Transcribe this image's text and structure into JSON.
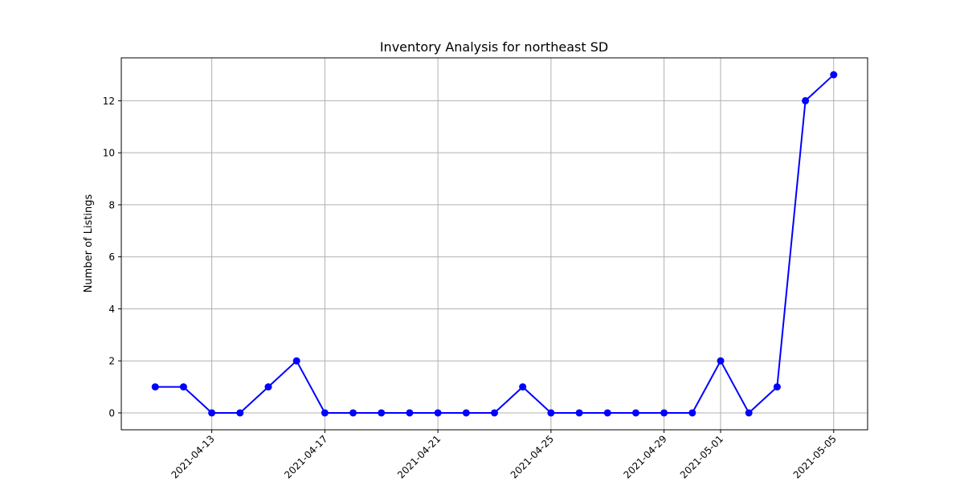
{
  "chart_data": {
    "type": "line",
    "title": "Inventory Analysis for northeast SD",
    "xlabel": "",
    "ylabel": "Number of Listings",
    "x": [
      "2021-04-11",
      "2021-04-12",
      "2021-04-13",
      "2021-04-14",
      "2021-04-15",
      "2021-04-16",
      "2021-04-17",
      "2021-04-18",
      "2021-04-19",
      "2021-04-20",
      "2021-04-21",
      "2021-04-22",
      "2021-04-23",
      "2021-04-24",
      "2021-04-25",
      "2021-04-26",
      "2021-04-27",
      "2021-04-28",
      "2021-04-29",
      "2021-04-30",
      "2021-05-01",
      "2021-05-02",
      "2021-05-03",
      "2021-05-04",
      "2021-05-05"
    ],
    "series": [
      {
        "name": "",
        "color": "#0000ff",
        "marker": "circle",
        "values": [
          1,
          1,
          0,
          0,
          1,
          2,
          0,
          0,
          0,
          0,
          0,
          0,
          0,
          1,
          0,
          0,
          0,
          0,
          0,
          0,
          2,
          0,
          1,
          12,
          13
        ]
      }
    ],
    "xticks": [
      "2021-04-13",
      "2021-04-17",
      "2021-04-21",
      "2021-04-25",
      "2021-04-29",
      "2021-05-01",
      "2021-05-05"
    ],
    "yticks": [
      "0",
      "2",
      "4",
      "6",
      "8",
      "10",
      "12"
    ],
    "xlim": [
      "2021-04-09 19:12",
      "2021-05-06 04:48"
    ],
    "ylim": [
      -0.65,
      13.65
    ],
    "grid": true,
    "xtick_rotation": 45
  }
}
